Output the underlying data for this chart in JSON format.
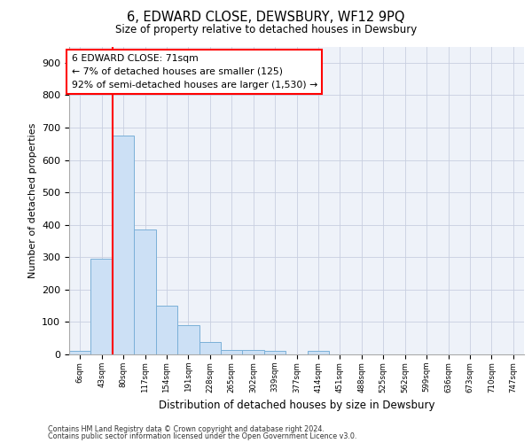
{
  "title": "6, EDWARD CLOSE, DEWSBURY, WF12 9PQ",
  "subtitle": "Size of property relative to detached houses in Dewsbury",
  "xlabel": "Distribution of detached houses by size in Dewsbury",
  "ylabel": "Number of detached properties",
  "bar_labels": [
    "6sqm",
    "43sqm",
    "80sqm",
    "117sqm",
    "154sqm",
    "191sqm",
    "228sqm",
    "265sqm",
    "302sqm",
    "339sqm",
    "377sqm",
    "414sqm",
    "451sqm",
    "488sqm",
    "525sqm",
    "562sqm",
    "599sqm",
    "636sqm",
    "673sqm",
    "710sqm",
    "747sqm"
  ],
  "bar_values": [
    10,
    295,
    675,
    385,
    150,
    90,
    38,
    15,
    15,
    10,
    0,
    10,
    0,
    0,
    0,
    0,
    0,
    0,
    0,
    0,
    0
  ],
  "bar_color": "#cce0f5",
  "bar_edge_color": "#7ab0d8",
  "vline_color": "red",
  "vline_x_index": 1.5,
  "annotation_text": "6 EDWARD CLOSE: 71sqm\n← 7% of detached houses are smaller (125)\n92% of semi-detached houses are larger (1,530) →",
  "annotation_box_color": "white",
  "annotation_box_edge_color": "red",
  "ylim": [
    0,
    950
  ],
  "yticks": [
    0,
    100,
    200,
    300,
    400,
    500,
    600,
    700,
    800,
    900
  ],
  "footer_line1": "Contains HM Land Registry data © Crown copyright and database right 2024.",
  "footer_line2": "Contains public sector information licensed under the Open Government Licence v3.0.",
  "bg_color": "#ffffff",
  "plot_bg_color": "#eef2f9",
  "grid_color": "#c8cfe0"
}
